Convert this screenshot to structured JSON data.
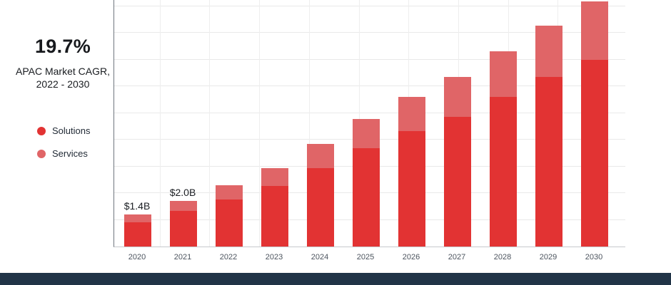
{
  "panel": {
    "stat_value": "19.7%",
    "stat_label_line1": "APAC Market CAGR,",
    "stat_label_line2": "2022 - 2030",
    "legend": [
      {
        "label": "Solutions",
        "color": "#e23333"
      },
      {
        "label": "Services",
        "color": "#e06567"
      }
    ]
  },
  "chart_data": {
    "type": "bar",
    "stacked": true,
    "title": "",
    "xlabel": "",
    "ylabel": "",
    "value_unit": "$B",
    "categories": [
      "2020",
      "2021",
      "2022",
      "2023",
      "2024",
      "2025",
      "2026",
      "2027",
      "2028",
      "2029",
      "2030"
    ],
    "series": [
      {
        "name": "Solutions",
        "color": "#e23333",
        "values": [
          1.05,
          1.55,
          2.05,
          2.65,
          3.45,
          4.3,
          5.05,
          5.7,
          6.55,
          7.45,
          8.2
        ]
      },
      {
        "name": "Services",
        "color": "#e06567",
        "values": [
          0.35,
          0.45,
          0.65,
          0.8,
          1.05,
          1.3,
          1.5,
          1.75,
          2.0,
          2.25,
          2.55
        ]
      }
    ],
    "totals": [
      1.4,
      2.0,
      2.7,
      3.45,
      4.5,
      5.6,
      6.55,
      7.45,
      8.55,
      9.7,
      10.75
    ],
    "bar_total_labels": [
      {
        "category": "2020",
        "text": "$1.4B"
      },
      {
        "category": "2021",
        "text": "$2.0B"
      }
    ],
    "ylim": [
      0,
      10.8
    ],
    "grid": true,
    "legend_position": "left"
  },
  "colors": {
    "footer": "#213447"
  }
}
